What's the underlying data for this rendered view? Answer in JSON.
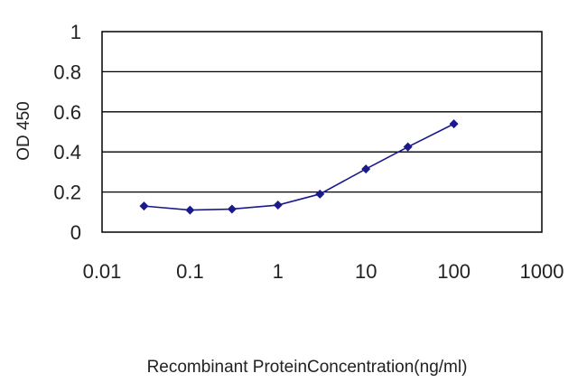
{
  "chart_data": {
    "type": "line",
    "title": "",
    "xlabel": "Recombinant ProteinConcentration(ng/ml)",
    "ylabel": "OD 450",
    "xscale": "log",
    "xlim": [
      0.01,
      1000
    ],
    "ylim": [
      0,
      1
    ],
    "x_ticks": [
      0.01,
      0.1,
      1,
      10,
      100,
      1000
    ],
    "x_tick_labels": [
      "0.01",
      "0.1",
      "1",
      "10",
      "100",
      "1000"
    ],
    "y_ticks": [
      0,
      0.2,
      0.4,
      0.6,
      0.8,
      1
    ],
    "y_tick_labels": [
      "0",
      "0.2",
      "0.4",
      "0.6",
      "0.8",
      "1"
    ],
    "grid": "horizontal",
    "legend": "none",
    "colors": {
      "series": "#1a1a8c",
      "grid": "#000000",
      "frame": "#000000"
    },
    "series": [
      {
        "x": [
          0.03,
          0.1,
          0.3,
          1,
          3,
          10,
          30,
          100
        ],
        "y": [
          0.13,
          0.11,
          0.115,
          0.135,
          0.19,
          0.315,
          0.425,
          0.54
        ]
      }
    ]
  }
}
